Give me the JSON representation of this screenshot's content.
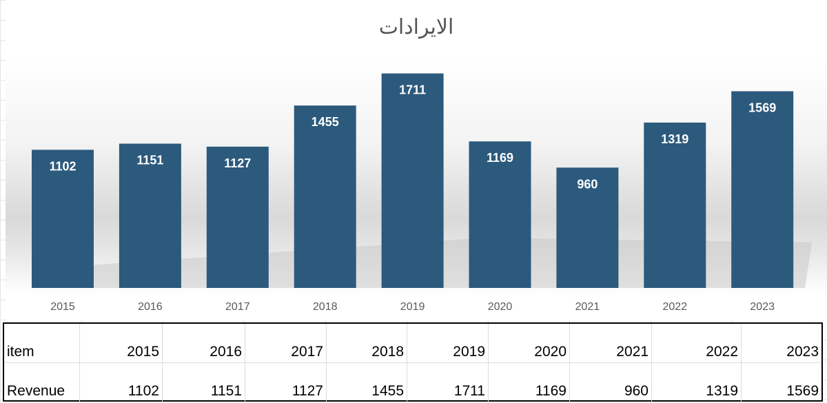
{
  "chart_data": {
    "type": "bar",
    "title": "الايرادات",
    "categories": [
      "2015",
      "2016",
      "2017",
      "2018",
      "2019",
      "2020",
      "2021",
      "2022",
      "2023"
    ],
    "values": [
      1102,
      1151,
      1127,
      1455,
      1711,
      1169,
      960,
      1319,
      1569
    ],
    "ylim": [
      0,
      1900
    ],
    "bar_color": "#2c5a7d",
    "data_labels": true,
    "grid": false,
    "legend": "none"
  },
  "table": {
    "header_label": "item",
    "row_label": "Revenue",
    "columns": [
      "2015",
      "2016",
      "2017",
      "2018",
      "2019",
      "2020",
      "2021",
      "2022",
      "2023"
    ],
    "values": [
      "1102",
      "1151",
      "1127",
      "1455",
      "1711",
      "1169",
      "960",
      "1319",
      "1569"
    ]
  }
}
